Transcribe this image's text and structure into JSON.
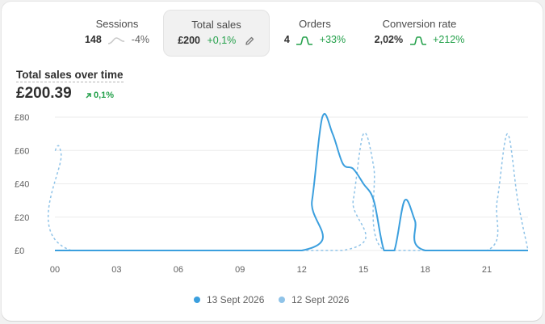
{
  "metrics": [
    {
      "label": "Sessions",
      "value": "148",
      "delta": "-4%",
      "trend": "flat",
      "spark_icon": "sparkline-icon"
    },
    {
      "label": "Total sales",
      "value": "£200",
      "delta": "+0,1%",
      "trend": "up",
      "spark_icon": "pencil-icon",
      "active": true
    },
    {
      "label": "Orders",
      "value": "4",
      "delta": "+33%",
      "trend": "up",
      "spark_icon": "sparkline-icon"
    },
    {
      "label": "Conversion rate",
      "value": "2,02%",
      "delta": "+212%",
      "trend": "up",
      "spark_icon": "sparkline-icon"
    }
  ],
  "chart_header": {
    "title": "Total sales over time",
    "value": "£200.39",
    "delta": "0,1%",
    "delta_icon": "arrow-up-right-icon"
  },
  "chart_data": {
    "type": "line",
    "y_ticks": [
      "£80",
      "£60",
      "£40",
      "£20",
      "£0"
    ],
    "x_ticks": [
      "00",
      "03",
      "06",
      "09",
      "12",
      "15",
      "18",
      "21"
    ],
    "ylim": [
      0,
      80
    ],
    "xlim": [
      0,
      23
    ],
    "grid": true,
    "legend_position": "bottom",
    "series": [
      {
        "name": "13 Sept 2026",
        "color": "#3b9fde",
        "style": "solid",
        "points": [
          [
            0,
            0
          ],
          [
            12,
            0
          ],
          [
            12.5,
            30
          ],
          [
            13,
            80
          ],
          [
            13.5,
            70
          ],
          [
            14,
            52
          ],
          [
            14.5,
            49
          ],
          [
            15,
            40
          ],
          [
            15.5,
            30
          ],
          [
            16,
            0
          ],
          [
            16.5,
            0
          ],
          [
            17,
            30
          ],
          [
            17.5,
            18
          ],
          [
            18,
            0
          ],
          [
            23,
            0
          ]
        ]
      },
      {
        "name": "12 Sept 2026",
        "color": "#8fc3e8",
        "style": "dashed",
        "points": [
          [
            0,
            60
          ],
          [
            0.3,
            58
          ],
          [
            0.8,
            0
          ],
          [
            14,
            0
          ],
          [
            14.5,
            30
          ],
          [
            15,
            70
          ],
          [
            15.5,
            50
          ],
          [
            16,
            0
          ],
          [
            21,
            0
          ],
          [
            21.5,
            30
          ],
          [
            22,
            70
          ],
          [
            22.5,
            30
          ],
          [
            23,
            0
          ]
        ]
      }
    ]
  },
  "colors": {
    "accent_up": "#23a04a",
    "series_primary": "#3b9fde",
    "series_secondary": "#8fc3e8"
  }
}
